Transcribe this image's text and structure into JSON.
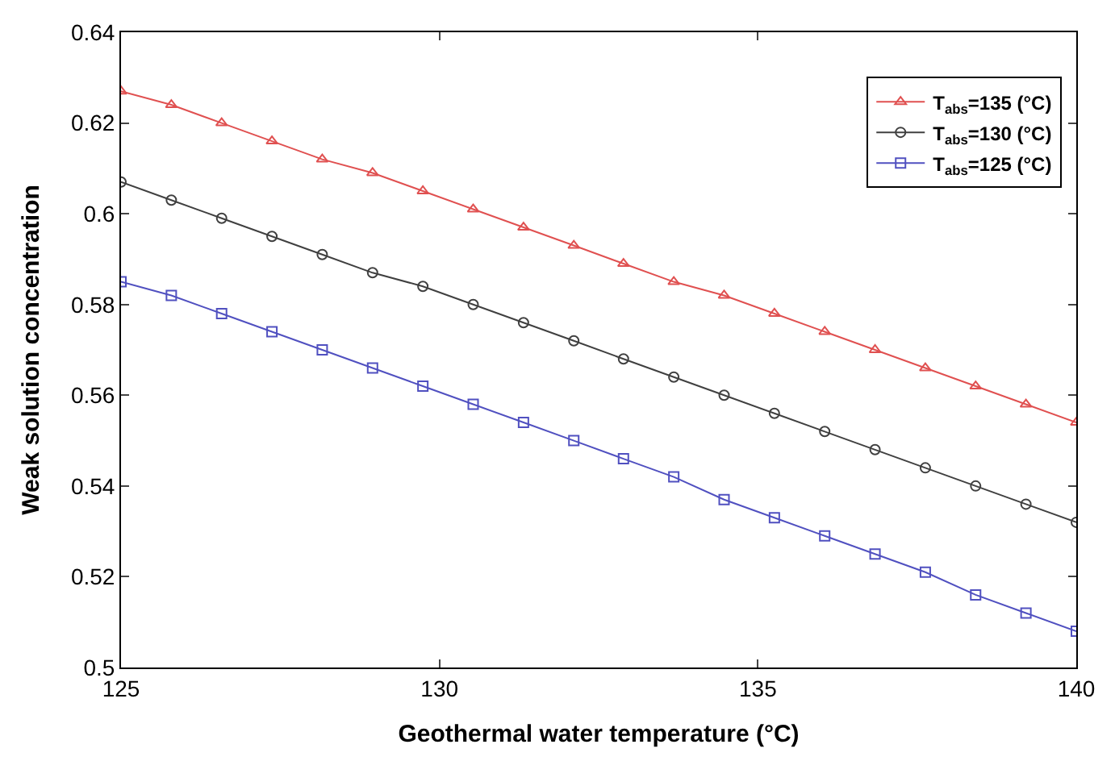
{
  "chart_data": {
    "type": "line",
    "xlabel": "Geothermal water temperature (°C)",
    "ylabel": "Weak solution concentration",
    "x": [
      125,
      125.79,
      126.58,
      127.37,
      128.16,
      128.95,
      129.74,
      130.53,
      131.32,
      132.11,
      132.89,
      133.68,
      134.47,
      135.26,
      136.05,
      136.84,
      137.63,
      138.42,
      139.21,
      140
    ],
    "series": [
      {
        "name": "T$_{abs}$=135 (°C)",
        "color": "#e05050",
        "marker": "triangle",
        "values": [
          0.627,
          0.624,
          0.62,
          0.616,
          0.612,
          0.609,
          0.605,
          0.601,
          0.597,
          0.593,
          0.589,
          0.585,
          0.582,
          0.578,
          0.574,
          0.57,
          0.566,
          0.562,
          0.558,
          0.554
        ]
      },
      {
        "name": "T$_{abs}$=130 (°C)",
        "color": "#404040",
        "marker": "circle",
        "values": [
          0.607,
          0.603,
          0.599,
          0.595,
          0.591,
          0.587,
          0.584,
          0.58,
          0.576,
          0.572,
          0.568,
          0.564,
          0.56,
          0.556,
          0.552,
          0.548,
          0.544,
          0.54,
          0.536,
          0.532
        ]
      },
      {
        "name": "T$_{abs}$=125 (°C)",
        "color": "#5050c0",
        "marker": "square",
        "values": [
          0.585,
          0.582,
          0.578,
          0.574,
          0.57,
          0.566,
          0.562,
          0.558,
          0.554,
          0.55,
          0.546,
          0.542,
          0.537,
          0.533,
          0.529,
          0.525,
          0.521,
          0.516,
          0.512,
          0.508
        ]
      }
    ],
    "xlim": [
      125,
      140
    ],
    "xticks": [
      125,
      130,
      135,
      140
    ],
    "ylim": [
      0.5,
      0.64
    ],
    "yticks": [
      0.5,
      0.52,
      0.54,
      0.56,
      0.58,
      0.6,
      0.62,
      0.64
    ],
    "legend": "top right",
    "line_style": "solid"
  }
}
